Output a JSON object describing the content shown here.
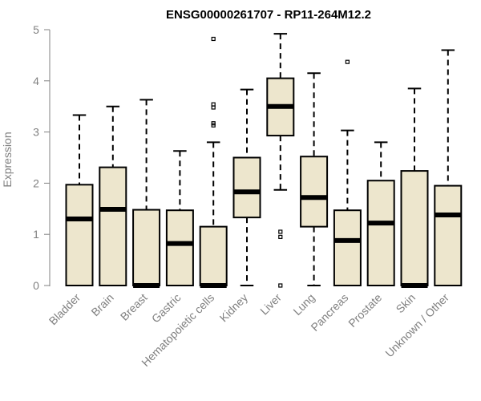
{
  "chart_data": {
    "type": "boxplot",
    "title": "ENSG00000261707 - RP11-264M12.2",
    "ylabel": "Expression",
    "xlabel": "",
    "ylim": [
      0,
      5
    ],
    "yticks": [
      0,
      1,
      2,
      3,
      4,
      5
    ],
    "box_fill": "#ede6cd",
    "categories": [
      "Bladder",
      "Brain",
      "Breast",
      "Gastric",
      "Hematopoietic cells",
      "Kidney",
      "Liver",
      "Lung",
      "Pancreas",
      "Prostate",
      "Skin",
      "Unknown / Other"
    ],
    "boxes": [
      {
        "min": 0,
        "q1": 0,
        "median": 1.3,
        "q3": 1.97,
        "max": 3.33,
        "outliers": []
      },
      {
        "min": 0,
        "q1": 0,
        "median": 1.49,
        "q3": 2.31,
        "max": 3.5,
        "outliers": []
      },
      {
        "min": 0,
        "q1": 0,
        "median": 0,
        "q3": 1.48,
        "max": 3.63,
        "outliers": []
      },
      {
        "min": 0,
        "q1": 0,
        "median": 0.82,
        "q3": 1.47,
        "max": 2.63,
        "outliers": []
      },
      {
        "min": 0,
        "q1": 0,
        "median": 0,
        "q3": 1.15,
        "max": 2.8,
        "outliers": [
          3.13,
          3.17,
          3.48,
          3.54,
          4.82
        ]
      },
      {
        "min": 0,
        "q1": 1.33,
        "median": 1.83,
        "q3": 2.5,
        "max": 3.83,
        "outliers": []
      },
      {
        "min": 1.87,
        "q1": 2.93,
        "median": 3.5,
        "q3": 4.05,
        "max": 4.92,
        "outliers": [
          0,
          0.95,
          1.05
        ]
      },
      {
        "min": 0,
        "q1": 1.15,
        "median": 1.72,
        "q3": 2.52,
        "max": 4.15,
        "outliers": []
      },
      {
        "min": 0,
        "q1": 0,
        "median": 0.88,
        "q3": 1.47,
        "max": 3.03,
        "outliers": [
          4.37
        ]
      },
      {
        "min": 0,
        "q1": 0,
        "median": 1.22,
        "q3": 2.05,
        "max": 2.8,
        "outliers": []
      },
      {
        "min": 0,
        "q1": 0,
        "median": 0,
        "q3": 2.24,
        "max": 3.85,
        "outliers": []
      },
      {
        "min": 0,
        "q1": 0,
        "median": 1.38,
        "q3": 1.95,
        "max": 4.6,
        "outliers": []
      }
    ]
  }
}
